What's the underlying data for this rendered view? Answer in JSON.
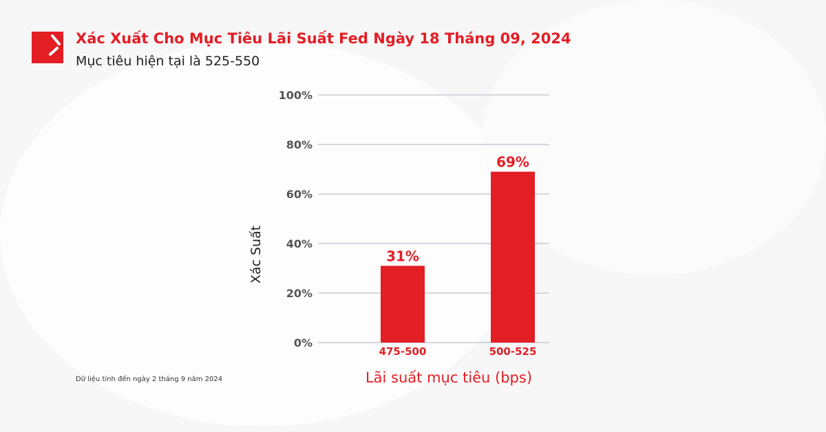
{
  "header": {
    "title": "Xác Xuất Cho Mục Tiêu Lãi Suất Fed Ngày 18 Tháng 09, 2024",
    "subtitle": "Mục tiêu hiện tại là 525-550"
  },
  "footnote": "Dữ liệu tính đến ngày 2 tháng 9 năm 2024",
  "colors": {
    "accent": "#e31e24",
    "grid": "#c9c9d3"
  },
  "chart_data": {
    "type": "bar",
    "categories": [
      "475-500",
      "500-525"
    ],
    "values": [
      31,
      69
    ],
    "data_labels": [
      "31%",
      "69%"
    ],
    "xlabel": "Lãi suất mục tiêu (bps)",
    "ylabel": "Xác Suất",
    "ylim": [
      0,
      100
    ],
    "yticks": [
      "0%",
      "20%",
      "40%",
      "60%",
      "80%",
      "100%"
    ],
    "grid": true
  }
}
